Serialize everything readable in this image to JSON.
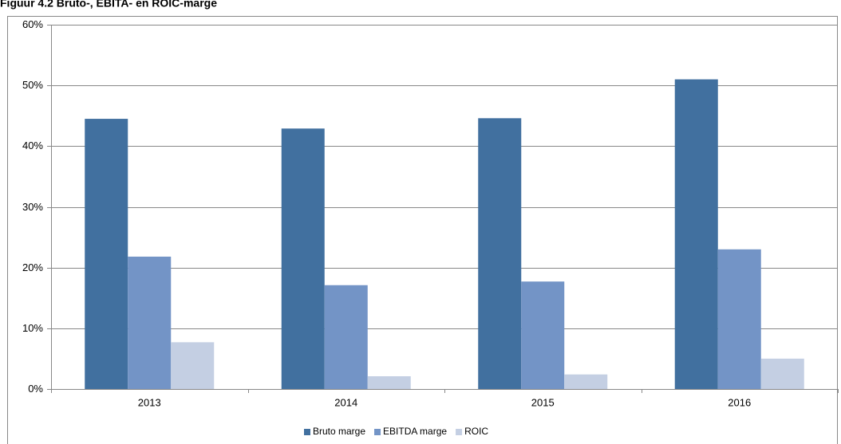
{
  "chart_data": {
    "type": "bar",
    "title": "Figuur 4.2 Bruto-, EBITA- en ROIC-marge",
    "categories": [
      "2013",
      "2014",
      "2015",
      "2016"
    ],
    "series": [
      {
        "name": "Bruto marge",
        "color": "#41709f",
        "values": [
          44.5,
          42.9,
          44.6,
          51.0
        ]
      },
      {
        "name": "EBITDA marge",
        "color": "#7394c6",
        "values": [
          21.8,
          17.1,
          17.7,
          23.0
        ]
      },
      {
        "name": "ROIC",
        "color": "#c4cfe3",
        "values": [
          7.7,
          2.1,
          2.4,
          5.0
        ]
      }
    ],
    "ylim": [
      0,
      60
    ],
    "yticks": [
      {
        "value": 0,
        "label": "0%"
      },
      {
        "value": 10,
        "label": "10%"
      },
      {
        "value": 20,
        "label": "20%"
      },
      {
        "value": 30,
        "label": "30%"
      },
      {
        "value": 40,
        "label": "40%"
      },
      {
        "value": 50,
        "label": "50%"
      },
      {
        "value": 60,
        "label": "60%"
      }
    ],
    "grid": true,
    "legend": "bottom"
  }
}
